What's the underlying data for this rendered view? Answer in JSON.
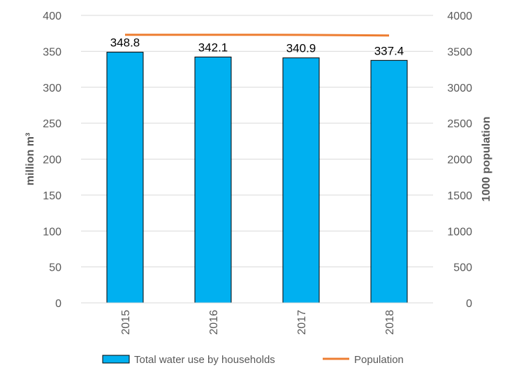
{
  "chart_data": {
    "type": "bar",
    "categories": [
      "2015",
      "2016",
      "2017",
      "2018"
    ],
    "series": [
      {
        "name": "Total water use by households",
        "kind": "bar",
        "axis": "left",
        "color": "#00B0F0",
        "values": [
          348.8,
          342.1,
          340.9,
          337.4
        ],
        "labels": [
          "348.8",
          "342.1",
          "340.9",
          "337.4"
        ]
      },
      {
        "name": "Population",
        "kind": "line",
        "axis": "right",
        "color": "#ED7D31",
        "values": [
          3730,
          3730,
          3729,
          3720
        ]
      }
    ],
    "ylabel": "million m³",
    "y2label": "1000 population",
    "ylim": [
      0,
      400
    ],
    "y2lim": [
      0,
      4000
    ],
    "yticks": [
      "0",
      "50",
      "100",
      "150",
      "200",
      "250",
      "300",
      "350",
      "400"
    ],
    "y2ticks": [
      "0",
      "500",
      "1000",
      "1500",
      "2000",
      "2500",
      "3000",
      "3500",
      "4000"
    ],
    "grid": true,
    "legend": "bottom"
  }
}
